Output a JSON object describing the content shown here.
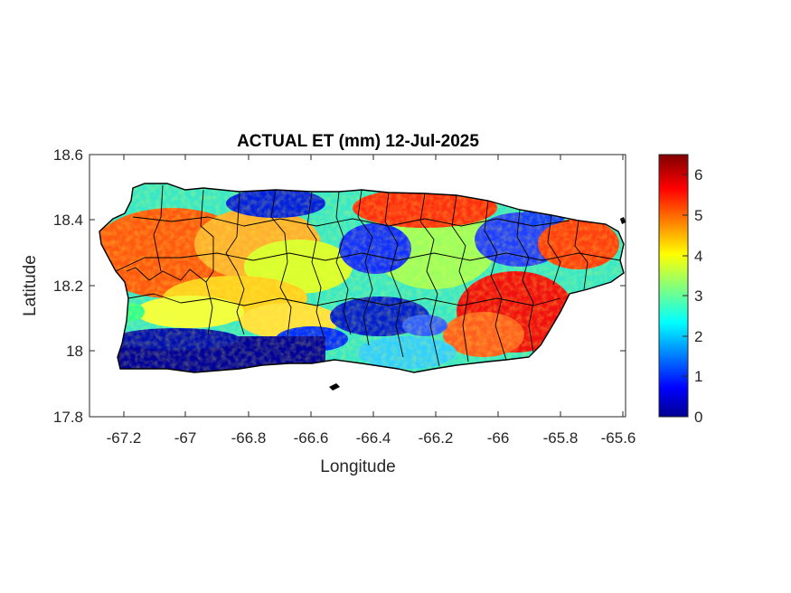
{
  "title": "ACTUAL ET (mm) 12-Jul-2025",
  "xlabel": "Longitude",
  "ylabel": "Latitude",
  "xticks": [
    "-67.2",
    "-67",
    "-66.8",
    "-66.6",
    "-66.4",
    "-66.2",
    "-66",
    "-65.8",
    "-65.6"
  ],
  "yticks": [
    "18.6",
    "18.4",
    "18.2",
    "18",
    "17.8"
  ],
  "colorbar": {
    "colormap": "jet",
    "ticks": [
      "0",
      "1",
      "2",
      "3",
      "4",
      "5",
      "6"
    ],
    "range": [
      0,
      6.5
    ]
  },
  "map_data": {
    "region": "Puerto Rico",
    "field": "actual evapotranspiration",
    "units": "mm",
    "date": "12-Jul-2025",
    "xlim": [
      -67.3,
      -65.58
    ],
    "ylim": [
      17.8,
      18.6
    ],
    "overlay": "municipality boundaries",
    "pattern": [
      {
        "area": "south coast band",
        "level": 0.5
      },
      {
        "area": "west interior",
        "level": 5.2
      },
      {
        "area": "north-central karst",
        "level": 1.0
      },
      {
        "area": "central east interior",
        "level": 1.2
      },
      {
        "area": "southeast",
        "level": 5.5
      },
      {
        "area": "northeast",
        "level": 5.0
      },
      {
        "area": "central highlands",
        "level": 3.2
      }
    ]
  }
}
